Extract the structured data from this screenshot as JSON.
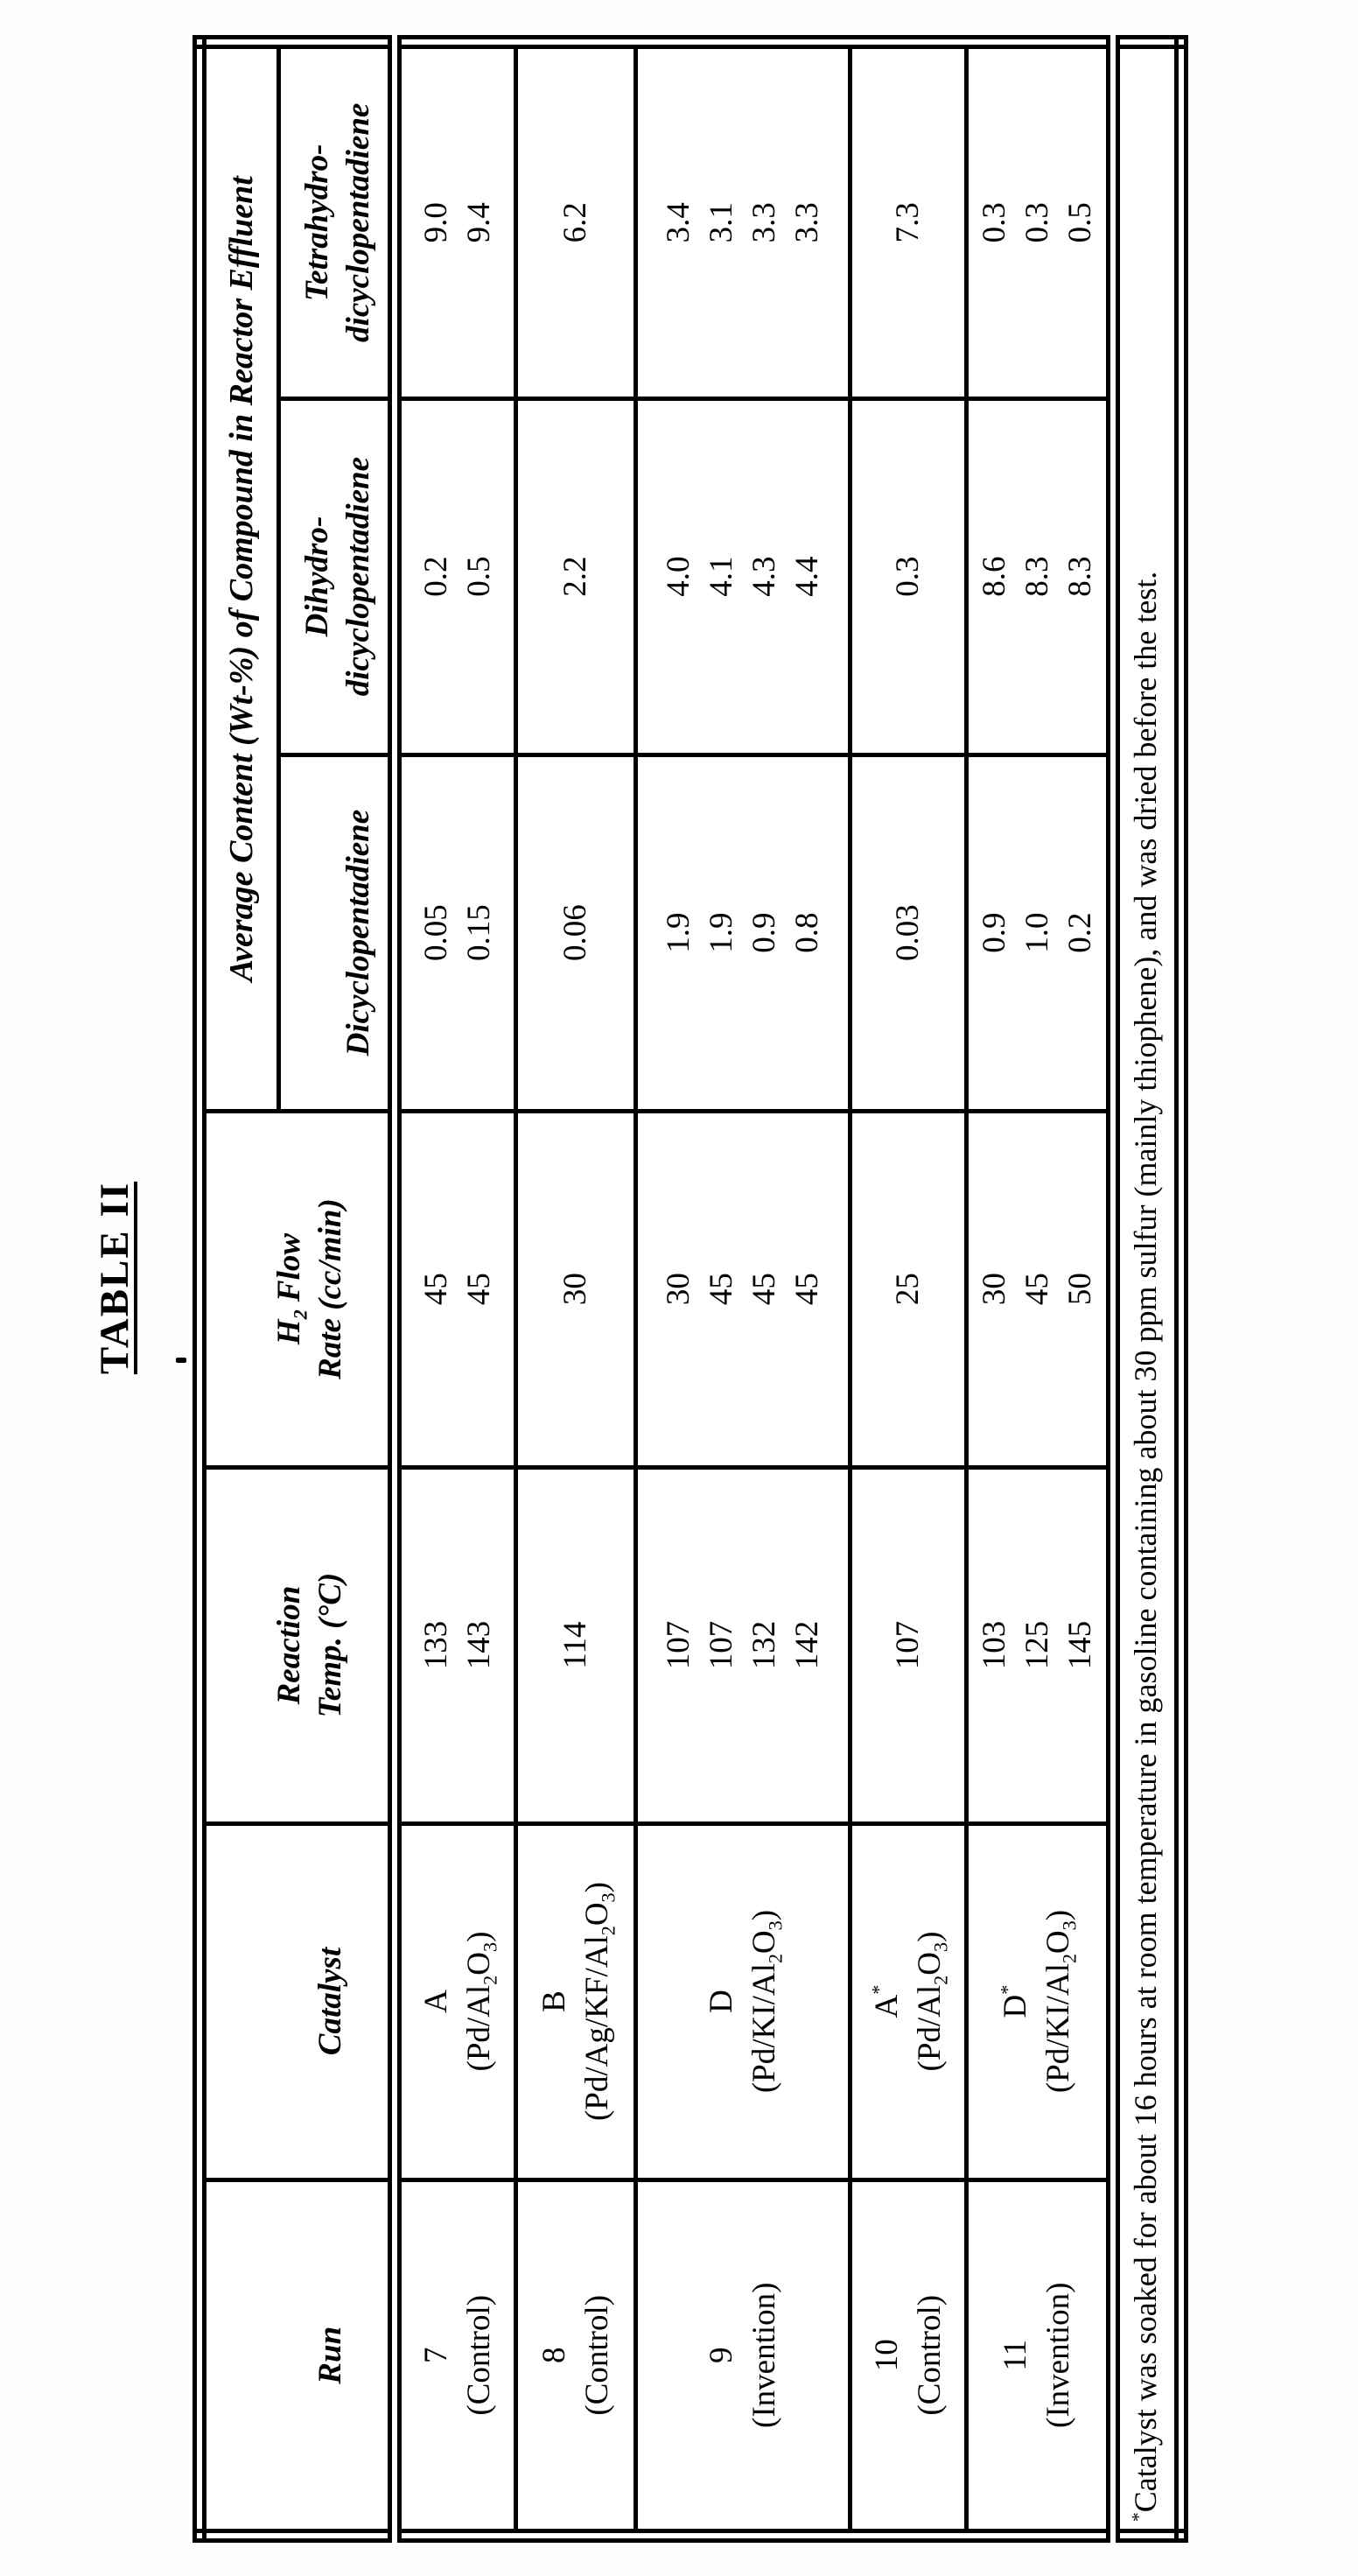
{
  "title": "TABLE II",
  "colors": {
    "ink": "#000000",
    "paper": "#ffffff"
  },
  "table": {
    "headers": {
      "run": "Run",
      "catalyst": "Catalyst",
      "reaction_temp": [
        "Reaction",
        "Temp. (°C)"
      ],
      "h2_flow": [
        "H<sub>2</sub> Flow",
        "Rate (cc/min)"
      ],
      "average_content": "Average Content (Wt-%) of Compound in Reactor Effluent"
    },
    "subheaders": {
      "dicyclopentadiene": [
        "Dicyclopentadiene"
      ],
      "dihydro": [
        "Dihydro-",
        "dicyclopentadiene"
      ],
      "tetrahydro": [
        "Tetrahydro-",
        "dicyclopentadiene"
      ]
    },
    "rows": [
      {
        "run": [
          "7",
          "(Control)"
        ],
        "catalyst": [
          "A",
          "(Pd/Al<sub>2</sub>O<sub>3</sub>)"
        ],
        "temp": [
          "133",
          "143"
        ],
        "h2": [
          "45",
          "45"
        ],
        "dcpd": [
          "0.05",
          "0.15"
        ],
        "dhdcpd": [
          "0.2",
          "0.5"
        ],
        "thdcpd": [
          "9.0",
          "9.4"
        ]
      },
      {
        "run": [
          "8",
          "(Control)"
        ],
        "catalyst": [
          "B",
          "(Pd/Ag/KF/Al<sub>2</sub>O<sub>3</sub>)"
        ],
        "temp": [
          "114"
        ],
        "h2": [
          "30"
        ],
        "dcpd": [
          "0.06"
        ],
        "dhdcpd": [
          "2.2"
        ],
        "thdcpd": [
          "6.2"
        ]
      },
      {
        "run": [
          "9",
          "(Invention)"
        ],
        "catalyst": [
          "D",
          "(Pd/KI/Al<sub>2</sub>O<sub>3</sub>)"
        ],
        "temp": [
          "107",
          "107",
          "132",
          "142"
        ],
        "h2": [
          "30",
          "45",
          "45",
          "45"
        ],
        "dcpd": [
          "1.9",
          "1.9",
          "0.9",
          "0.8"
        ],
        "dhdcpd": [
          "4.0",
          "4.1",
          "4.3",
          "4.4"
        ],
        "thdcpd": [
          "3.4",
          "3.1",
          "3.3",
          "3.3"
        ]
      },
      {
        "run": [
          "10",
          "(Control)"
        ],
        "catalyst": [
          "A<sup>*</sup>",
          "(Pd/Al<sub>2</sub>O<sub>3</sub>)"
        ],
        "temp": [
          "107"
        ],
        "h2": [
          "25"
        ],
        "dcpd": [
          "0.03"
        ],
        "dhdcpd": [
          "0.3"
        ],
        "thdcpd": [
          "7.3"
        ]
      },
      {
        "run": [
          "11",
          "(Invention)"
        ],
        "catalyst": [
          "D<sup>*</sup>",
          "(Pd/KI/Al<sub>2</sub>O<sub>3</sub>)"
        ],
        "temp": [
          "103",
          "125",
          "145"
        ],
        "h2": [
          "30",
          "45",
          "50"
        ],
        "dcpd": [
          "0.9",
          "1.0",
          "0.2"
        ],
        "dhdcpd": [
          "8.6",
          "8.3",
          "8.3"
        ],
        "thdcpd": [
          "0.3",
          "0.3",
          "0.5"
        ]
      }
    ]
  },
  "footnote": "<sup>*</sup>Catalyst was soaked for about 16 hours at room temperature in gasoline containing about 30 ppm sulfur (mainly thiophene), and was dried before the test."
}
